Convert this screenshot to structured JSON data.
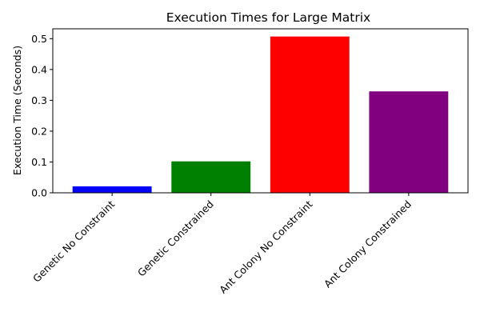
{
  "chart_data": {
    "type": "bar",
    "title": "Execution Times for Large Matrix",
    "xlabel": "",
    "ylabel": "Execution Time (Seconds)",
    "categories": [
      "Genetic No Constraint",
      "Genetic Constrained",
      "Ant Colony No Constraint",
      "Ant Colony Constrained"
    ],
    "values": [
      0.021,
      0.102,
      0.507,
      0.329
    ],
    "colors": [
      "#0000ff",
      "#008000",
      "#ff0000",
      "#800080"
    ],
    "ylim": [
      0,
      0.532
    ],
    "yticks": [
      0.0,
      0.1,
      0.2,
      0.3,
      0.4,
      0.5
    ],
    "ytick_labels": [
      "0.0",
      "0.1",
      "0.2",
      "0.3",
      "0.4",
      "0.5"
    ],
    "grid": false,
    "legend": false
  }
}
